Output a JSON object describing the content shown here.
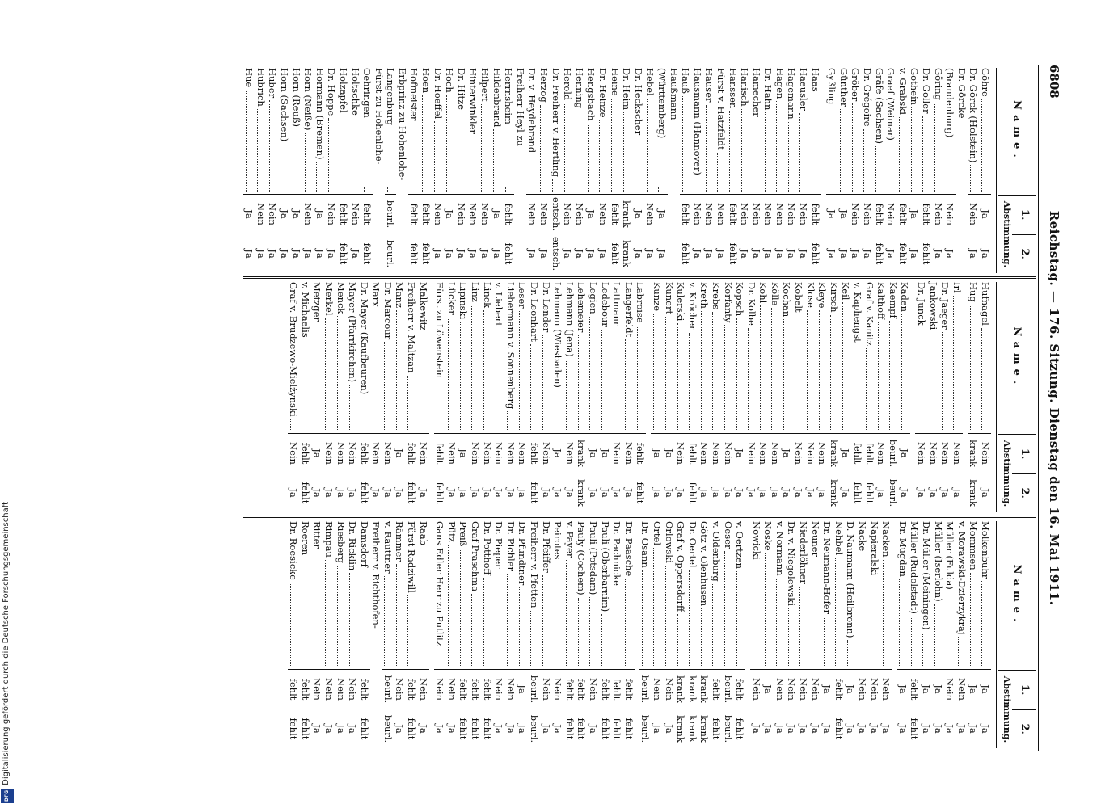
{
  "header": {
    "page_number": "6808",
    "title": "Reichstag. — 176. Sitzung. Dienstag den 16. Mai 1911."
  },
  "column_header": {
    "name": "Name.",
    "vote": "Abstimmung.",
    "first": "1.",
    "second": "2."
  },
  "columns": [
    {
      "groups": [
        [
          [
            "Göhre",
            "Ja",
            "Ja"
          ],
          [
            "Dr. Görck (Holstein)",
            "Nein",
            "Ja"
          ],
          [
            "Dr. Görcke (Brandenburg)",
            "Nein",
            "Ja"
          ],
          [
            "Göring",
            "Nein",
            "Ja"
          ],
          [
            "Dr. Goller",
            "fehlt",
            "fehlt"
          ],
          [
            "Gothein",
            "Ja",
            "Ja"
          ],
          [
            "v. Grabski",
            "fehlt",
            "fehlt"
          ],
          [
            "Graef (Weimar)",
            "Nein",
            "Ja"
          ],
          [
            "Gräfe (Sachsen)",
            "fehlt",
            "fehlt"
          ],
          [
            "Dr. Grégoire",
            "Nein",
            "Ja"
          ],
          [
            "Gröber",
            "Nein",
            "Ja"
          ],
          [
            "Günther",
            "Ja",
            "Ja"
          ],
          [
            "Gyßling",
            "Ja",
            "Ja"
          ]
        ],
        [
          [
            "Haas",
            "fehlt",
            "fehlt"
          ],
          [
            "Haeusler",
            "Nein",
            "Ja"
          ],
          [
            "Hagemann",
            "Nein",
            "Ja"
          ],
          [
            "Hagen",
            "Nein",
            "Ja"
          ],
          [
            "Dr. Hahn",
            "Nein",
            "Ja"
          ],
          [
            "Hamecher",
            "Nein",
            "Ja"
          ],
          [
            "Hanisch",
            "Nein",
            "Ja"
          ],
          [
            "Hanssen",
            "fehlt",
            "fehlt"
          ],
          [
            "Fürst v. Hatzfeldt",
            "Nein",
            "Ja"
          ],
          [
            "Hauser",
            "Nein",
            "Ja"
          ],
          [
            "Hausmann (Hannover)",
            "Nein",
            "Ja"
          ],
          [
            "Hauß",
            "fehlt",
            "fehlt"
          ],
          [
            "Haußmann (Württemberg)",
            "Ja",
            "Ja"
          ],
          [
            "Hebel",
            "Nein",
            "Ja"
          ],
          [
            "Dr. Heckscher",
            "Ja",
            "Ja"
          ],
          [
            "Dr. Heim",
            "krank",
            "krank"
          ],
          [
            "Heine",
            "fehlt",
            "fehlt"
          ],
          [
            "Dr. Heinze",
            "Nein",
            "Ja"
          ],
          [
            "Hengsbach",
            "Ja",
            "Ja"
          ],
          [
            "Henning",
            "Nein",
            "Ja"
          ],
          [
            "Herold",
            "Nein",
            "Ja"
          ],
          [
            "Dr. Freiherr v. Hertling",
            "entsch.",
            "entsch."
          ],
          [
            "Herzog",
            "Nein",
            "Ja"
          ],
          [
            "Dr. v. Heydebrand",
            "Nein",
            "Ja"
          ],
          [
            "Freiherr Heyl zu Herrnsheim",
            "fehlt",
            "fehlt"
          ],
          [
            "Hildenbrand",
            "Ja",
            "Ja"
          ],
          [
            "Hilpert",
            "Nein",
            "Ja"
          ],
          [
            "Hinterwinkler",
            "Nein",
            "Ja"
          ],
          [
            "Dr. Hitze",
            "Nein",
            "Ja"
          ],
          [
            "Hoch",
            "Ja",
            "Ja"
          ],
          [
            "Dr. Hoeffel",
            "Nein",
            "Ja"
          ],
          [
            "Hoen",
            "fehlt",
            "fehlt"
          ],
          [
            "Hofmeister",
            "fehlt",
            "fehlt"
          ],
          [
            "Erbprinz zu Hohenlohe-Langenburg",
            "beurl.",
            "beurl."
          ],
          [
            "Fürst zu Hohenlohe-Oehringen",
            "fehlt",
            "fehlt"
          ],
          [
            "Holtschke",
            "Nein",
            "Ja"
          ],
          [
            "Holzapfel",
            "fehlt",
            "fehlt"
          ],
          [
            "Dr. Hoppe",
            "Nein",
            "Ja"
          ],
          [
            "Hormann (Bremen)",
            "Ja",
            "Ja"
          ],
          [
            "Horn (Neiße)",
            "Nein",
            "Ja"
          ],
          [
            "Horn (Reuß)",
            "Ja",
            "Ja"
          ],
          [
            "Horn (Sachsen)",
            "Ja",
            "Ja"
          ],
          [
            "Huber",
            "Nein",
            "Ja"
          ],
          [
            "Hubrich",
            "Nein",
            "Ja"
          ],
          [
            "Hue",
            "Ja",
            "Ja"
          ]
        ]
      ]
    },
    {
      "groups": [
        [
          [
            "Hufnagel",
            "Nein",
            "Ja"
          ],
          [
            "Hug",
            "krank",
            "krank"
          ]
        ],
        [
          [
            "Irl",
            "Nein",
            "Ja"
          ],
          [
            "Dr. Jaeger",
            "Nein",
            "Ja"
          ],
          [
            "Jankowski",
            "Nein",
            "Ja"
          ],
          [
            "Dr. Junck",
            "Nein",
            "Ja"
          ]
        ],
        [
          [
            "Kaden",
            "Ja",
            "Ja"
          ],
          [
            "Kaempf",
            "beurl.",
            "beurl."
          ],
          [
            "Kalthoff",
            "Nein",
            "Ja"
          ],
          [
            "Graf v. Kanitz",
            "fehlt",
            "fehlt"
          ],
          [
            "v. Kaphengst",
            "fehlt",
            "fehlt"
          ],
          [
            "Keil",
            "Ja",
            "Ja"
          ],
          [
            "Kirsch",
            "krank",
            "krank"
          ],
          [
            "Kleye",
            "Nein",
            "Ja"
          ],
          [
            "Klose",
            "Nein",
            "Ja"
          ],
          [
            "Kobelt",
            "Nein",
            "Ja"
          ],
          [
            "Kochan",
            "Ja",
            "Ja"
          ],
          [
            "Kölle",
            "Nein",
            "Ja"
          ],
          [
            "Kohl",
            "Nein",
            "Ja"
          ],
          [
            "Dr. Kolbe",
            "Nein",
            "Ja"
          ],
          [
            "Kopsch",
            "Ja",
            "Ja"
          ],
          [
            "Korfanty",
            "Nein",
            "Ja"
          ],
          [
            "Krebs",
            "Nein",
            "Ja"
          ],
          [
            "Kreth",
            "Nein",
            "Ja"
          ],
          [
            "v. Kröcher",
            "fehlt",
            "fehlt"
          ],
          [
            "Kulerski",
            "Nein",
            "Ja"
          ],
          [
            "Kunert",
            "Ja",
            "Ja"
          ],
          [
            "Kunze",
            "Ja",
            "Ja"
          ]
        ],
        [
          [
            "Labroise",
            "fehlt",
            "fehlt"
          ],
          [
            "Langerfeldt",
            "Nein",
            "Ja"
          ],
          [
            "Lattmann",
            "Nein",
            "Ja"
          ],
          [
            "Ledebour",
            "Ja",
            "Ja"
          ],
          [
            "Legien",
            "Ja",
            "Ja"
          ],
          [
            "Lehemeier",
            "krank",
            "krank"
          ],
          [
            "Lehmann (Jena)",
            "Nein",
            "Ja"
          ],
          [
            "Lehmann (Wiesbaden)",
            "Ja",
            "Ja"
          ],
          [
            "Dr. Lender",
            "Nein",
            "Ja"
          ],
          [
            "Dr. Leonhart",
            "fehlt",
            "fehlt"
          ],
          [
            "Leser",
            "Nein",
            "Ja"
          ],
          [
            "Liebermann v. Sonnenberg",
            "Nein",
            "Ja"
          ],
          [
            "v. Liebert",
            "Nein",
            "Ja"
          ],
          [
            "Linck",
            "Nein",
            "Ja"
          ],
          [
            "Linz",
            "Nein",
            "Ja"
          ],
          [
            "Lipinski",
            "Ja",
            "Ja"
          ],
          [
            "Lücker",
            "Nein",
            "Ja"
          ],
          [
            "Fürst zu Löwenstein",
            "fehlt",
            "fehlt"
          ]
        ],
        [
          [
            "Malkewitz",
            "Nein",
            "Ja"
          ],
          [
            "Freiherr v. Maltzan",
            "fehlt",
            "fehlt"
          ],
          [
            "Manz",
            "Ja",
            "Ja"
          ],
          [
            "Dr. Marcour",
            "Nein",
            "Ja"
          ],
          [
            "Marx",
            "Nein",
            "Ja"
          ],
          [
            "Dr. Mayer (Kaufbeuren)",
            "fehlt",
            "fehlt"
          ],
          [
            "Mayer (Pfarrkirchen)",
            "Nein",
            "Ja"
          ],
          [
            "Menck",
            "Nein",
            "Ja"
          ],
          [
            "Merkel",
            "Nein",
            "Ja"
          ],
          [
            "Metzger",
            "Ja",
            "Ja"
          ],
          [
            "v. Michaelis",
            "fehlt",
            "fehlt"
          ],
          [
            "Graf v. Brudzewo-Mielżynski",
            "Nein",
            "Ja"
          ]
        ]
      ]
    },
    {
      "groups": [
        [
          [
            "Molkenbuhr",
            "Ja",
            "Ja"
          ],
          [
            "Mommsen",
            "Ja",
            "Ja"
          ],
          [
            "v. Morawski-Dzierzykraj",
            "Nein",
            "Ja"
          ],
          [
            "Müller (Fulda)",
            "Nein",
            "Ja"
          ],
          [
            "Müller (Iserlohn)",
            "Ja",
            "Ja"
          ],
          [
            "Dr. Müller (Meiningen)",
            "Ja",
            "Ja"
          ],
          [
            "Müller (Rudolstadt)",
            "fehlt",
            "fehlt"
          ],
          [
            "Dr. Mugdan",
            "Ja",
            "Ja"
          ]
        ],
        [
          [
            "Nacken",
            "Nein",
            "Ja"
          ],
          [
            "Napieralski",
            "Nein",
            "Ja"
          ],
          [
            "Nacke",
            "Nein",
            "Ja"
          ],
          [
            "D. Naumann (Heilbronn)",
            "Ja",
            "Ja"
          ],
          [
            "Nehbel",
            "fehlt",
            "fehlt"
          ],
          [
            "Dr. Neumann-Hofer",
            "Ja",
            "Ja"
          ],
          [
            "Neuner",
            "Nein",
            "Ja"
          ],
          [
            "Niederlöhner",
            "Nein",
            "Ja"
          ],
          [
            "Dr. v. Niegolewski",
            "Nein",
            "Ja"
          ],
          [
            "v. Normann",
            "Nein",
            "Ja"
          ],
          [
            "Noske",
            "Ja",
            "Ja"
          ],
          [
            "Nowicki",
            "Nein",
            "Ja"
          ]
        ],
        [
          [
            "v. Oertzen",
            "fehlt",
            "fehlt"
          ],
          [
            "Oeser",
            "beurl.",
            "beurl."
          ],
          [
            "v. Oldenburg",
            "fehlt",
            "fehlt"
          ],
          [
            "Götz v. Olenhusen",
            "krank",
            "krank"
          ],
          [
            "Dr. Oertel",
            "krank",
            "krank"
          ],
          [
            "Graf v. Oppersdorff",
            "krank",
            "krank"
          ],
          [
            "Orlowski",
            "Nein",
            "Ja"
          ],
          [
            "Ortel",
            "Nein",
            "Ja"
          ],
          [
            "Dr. Osann",
            "beurl.",
            "beurl."
          ]
        ],
        [
          [
            "Dr. Paasche",
            "fehlt",
            "fehlt"
          ],
          [
            "Dr. Pachnicke",
            "fehlt",
            "fehlt"
          ],
          [
            "Pauli (Oberbarnim)",
            "fehlt",
            "fehlt"
          ],
          [
            "Pauli (Potsdam)",
            "Nein",
            "Ja"
          ],
          [
            "Pauly (Cochem)",
            "fehlt",
            "fehlt"
          ],
          [
            "v. Payer",
            "fehlt",
            "fehlt"
          ],
          [
            "Peirotes",
            "Nein",
            "Ja"
          ],
          [
            "Dr. Pfeiffer",
            "Nein",
            "Ja"
          ],
          [
            "Freiherr v. Pfetten",
            "beurl.",
            "beurl."
          ],
          [
            "Dr. Pfundtner",
            "Ja",
            "Ja"
          ],
          [
            "Dr. Pichler",
            "Nein",
            "Ja"
          ],
          [
            "Dr. Pieper",
            "Nein",
            "Ja"
          ],
          [
            "Dr. Potthoff",
            "fehlt",
            "fehlt"
          ],
          [
            "Graf Praschma",
            "fehlt",
            "fehlt"
          ],
          [
            "Preiß",
            "fehlt",
            "fehlt"
          ],
          [
            "Pütz",
            "Nein",
            "Ja"
          ],
          [
            "Gans Edler Herr zu Putlitz",
            "Nein",
            "Ja"
          ]
        ],
        [
          [
            "Raab",
            "Nein",
            "Ja"
          ],
          [
            "Fürst Radziwill",
            "fehlt",
            "fehlt"
          ],
          [
            "Rämmer",
            "Nein",
            "Ja"
          ],
          [
            "v. Rauttner",
            "beurl.",
            "beurl."
          ],
          [
            "Freiherr v. Richthofen-Damsdorf",
            "fehlt",
            "fehlt"
          ],
          [
            "Dr. Ricklin",
            "Nein",
            "Ja"
          ],
          [
            "Riesberg",
            "Nein",
            "Ja"
          ],
          [
            "Rimpau",
            "Nein",
            "Ja"
          ],
          [
            "Ritter",
            "Nein",
            "Ja"
          ],
          [
            "Roeren",
            "fehlt",
            "fehlt"
          ],
          [
            "Dr. Roesicke",
            "fehlt",
            "fehlt"
          ]
        ]
      ]
    }
  ],
  "footer": {
    "text": "Digitalisierung gefördert durch die Deutsche Forschungsgemeinschaft",
    "logo": "DFG"
  }
}
